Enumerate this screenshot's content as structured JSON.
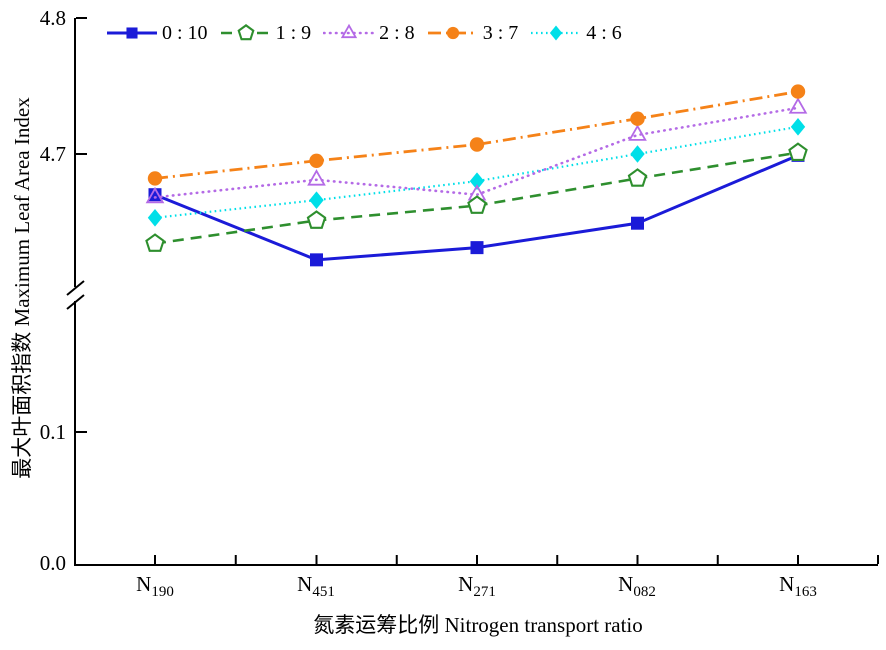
{
  "chart_data": {
    "type": "line",
    "title": "",
    "xlabel": "氮素运筹比例 Nitrogen transport ratio",
    "ylabel": "最大叶面积指数 Maximum Leaf Area Index",
    "categories": [
      "N190",
      "N451",
      "N271",
      "N082",
      "N163"
    ],
    "x_tick_labels": [
      {
        "base": "N",
        "sub": "190"
      },
      {
        "base": "N",
        "sub": "451"
      },
      {
        "base": "N",
        "sub": "271"
      },
      {
        "base": "N",
        "sub": "082"
      },
      {
        "base": "N",
        "sub": "163"
      }
    ],
    "y_tick_labels": [
      "4.8",
      "4.7",
      "0.1",
      "0.0"
    ],
    "y_axis_break": {
      "lower_range": [
        0.0,
        0.2
      ],
      "upper_range": [
        4.6,
        4.8
      ]
    },
    "grid": false,
    "legend_position": "top",
    "axis_color": "#000000",
    "series": [
      {
        "name": "0 : 10",
        "color": "#1b1bd8",
        "line_style": "solid",
        "marker": "square-filled",
        "values": [
          4.67,
          4.622,
          4.631,
          4.649,
          4.699
        ]
      },
      {
        "name": "1 : 9",
        "color": "#2e8f2e",
        "line_style": "dashed",
        "marker": "pentagon-open",
        "values": [
          4.634,
          4.651,
          4.662,
          4.682,
          4.701
        ]
      },
      {
        "name": "2 : 8",
        "color": "#b46ae6",
        "line_style": "dotted",
        "marker": "triangle-open",
        "values": [
          4.668,
          4.681,
          4.67,
          4.714,
          4.734
        ]
      },
      {
        "name": "3 : 7",
        "color": "#f58218",
        "line_style": "dashdot",
        "marker": "circle-filled",
        "values": [
          4.682,
          4.695,
          4.707,
          4.726,
          4.746
        ]
      },
      {
        "name": "4 : 6",
        "color": "#00dfe8",
        "line_style": "finedot",
        "marker": "diamond-filled",
        "values": [
          4.653,
          4.666,
          4.68,
          4.7,
          4.72
        ]
      }
    ]
  }
}
